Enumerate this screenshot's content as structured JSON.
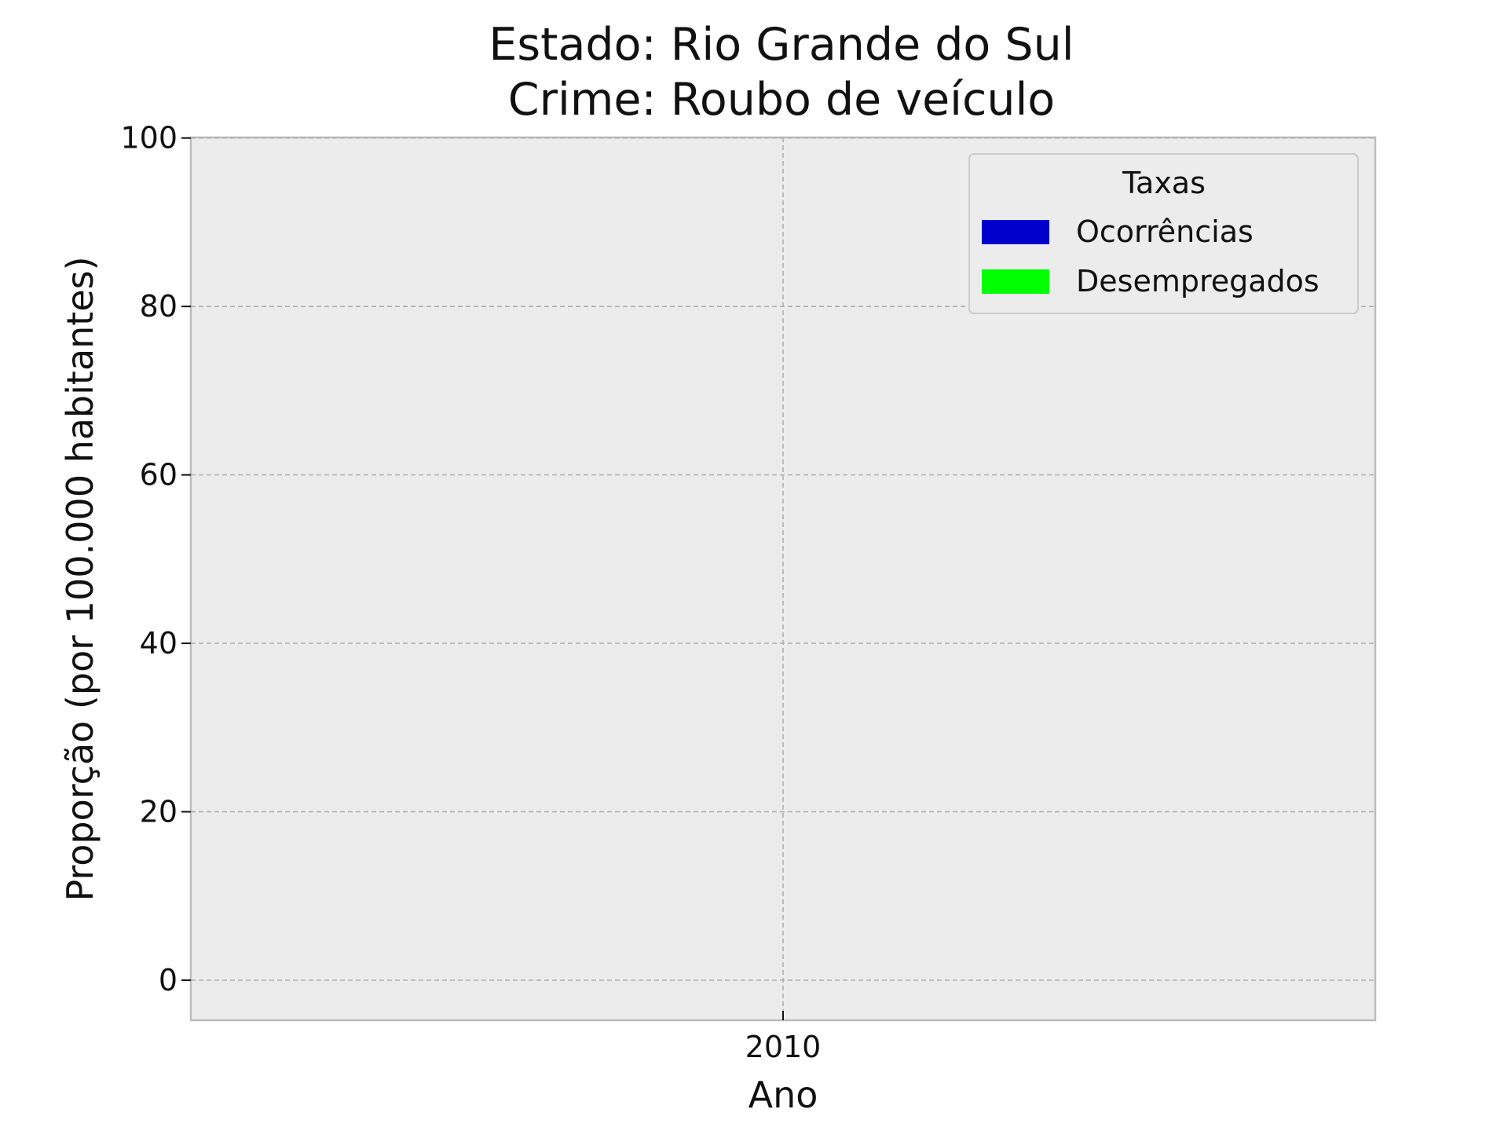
{
  "chart_data": {
    "type": "bar",
    "title": [
      "Estado: Rio Grande do Sul",
      "Crime: Roubo de veículo"
    ],
    "xlabel": "Ano",
    "ylabel": "Proporção (por 100.000 habitantes)",
    "categories": [
      "2010"
    ],
    "series": [
      {
        "name": "Ocorrências",
        "color": "#0000cc",
        "values": [
          null
        ]
      },
      {
        "name": "Desempregados",
        "color": "#00ff00",
        "values": [
          null
        ]
      }
    ],
    "ylim": [
      -5,
      100
    ],
    "yticks": [
      0,
      20,
      40,
      60,
      80,
      100
    ],
    "grid": true,
    "legend": {
      "title": "Taxas",
      "position": "top-right"
    },
    "plot_background": "#ececec"
  }
}
